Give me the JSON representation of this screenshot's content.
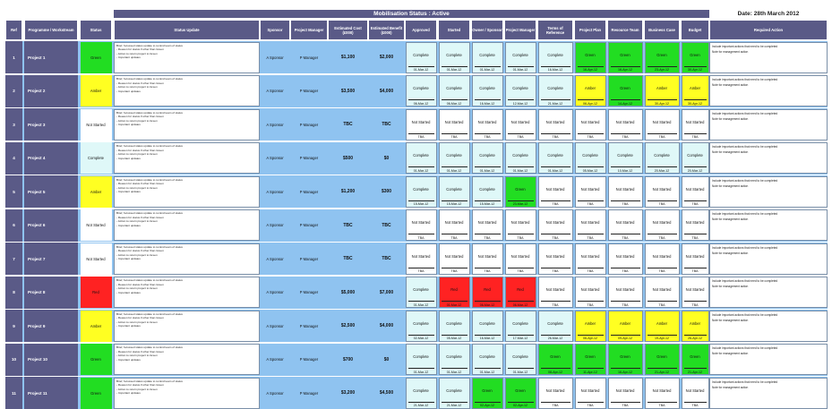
{
  "title": "Mobilisation Status : Active",
  "date": "Date: 28th March 2012",
  "colors": {
    "header": "#5a5a87",
    "row": "#8fc3f0",
    "Green": "#22dd22",
    "Amber": "#ffff22",
    "Red": "#ff2222",
    "Complete": "#dff8f8",
    "Not Started": "#ffffff"
  },
  "headers": {
    "ref": "Ref",
    "programme": "Programme / Workstream",
    "status": "Status",
    "status_update": "Status Update",
    "sponsor": "Sponsor",
    "project_manager": "Project Manager",
    "estimated_cost": "Estimated Cost (£000)",
    "estimated_benefit": "Estimated Benefit (£000)",
    "milestones": [
      "Approved",
      "Started",
      "Owner / Sponsor",
      "Project Manager",
      "Terms of Reference",
      "Project Plan",
      "Resource Team",
      "Business Case",
      "Budget"
    ],
    "required_action": "Required Action"
  },
  "status_update_lines": [
    "Brief, focussed status update to remind team of status",
    "- Reason for status if other than Green",
    "- Action to return project to Green",
    "- Important updates"
  ],
  "required_action_lines": [
    "Include important actions that need to be completed",
    "Note for management action"
  ],
  "rows": [
    {
      "ref": "1",
      "name": "Project 1",
      "status": "Green",
      "sponsor": "A Sponsor",
      "pm": "P Manager",
      "cost": "$1,100",
      "benefit": "$2,000",
      "milestones": [
        [
          "Complete",
          "01-Mar-12"
        ],
        [
          "Complete",
          "01-Mar-12"
        ],
        [
          "Complete",
          "01-Mar-12"
        ],
        [
          "Complete",
          "01-Mar-12"
        ],
        [
          "Complete",
          "16-Mar-12"
        ],
        [
          "Green",
          "16-Apr-12"
        ],
        [
          "Green",
          "16-Apr-12"
        ],
        [
          "Green",
          "23-Apr-12"
        ],
        [
          "Green",
          "30-Apr-12"
        ]
      ]
    },
    {
      "ref": "2",
      "name": "Project 2",
      "status": "Amber",
      "sponsor": "A Sponsor",
      "pm": "P Manager",
      "cost": "$3,500",
      "benefit": "$4,000",
      "milestones": [
        [
          "Complete",
          "06-Mar-12"
        ],
        [
          "Complete",
          "06-Mar-12"
        ],
        [
          "Complete",
          "16-Mar-12"
        ],
        [
          "Complete",
          "12-Mar-12"
        ],
        [
          "Complete",
          "21-Mar-12"
        ],
        [
          "Amber",
          "06-Apr-12"
        ],
        [
          "Green",
          "14-Apr-12"
        ],
        [
          "Amber",
          "30-Apr-12"
        ],
        [
          "Amber",
          "30-Apr-12"
        ]
      ]
    },
    {
      "ref": "3",
      "name": "Project 3",
      "status": "Not Started",
      "sponsor": "A Sponsor",
      "pm": "P Manager",
      "cost": "TBC",
      "benefit": "TBC",
      "milestones": [
        [
          "Not Started",
          "TBA"
        ],
        [
          "Not Started",
          "TBA"
        ],
        [
          "Not Started",
          "TBA"
        ],
        [
          "Not Started",
          "TBA"
        ],
        [
          "Not Started",
          "TBA"
        ],
        [
          "Not Started",
          "TBA"
        ],
        [
          "Not Started",
          "TBA"
        ],
        [
          "Not Started",
          "TBA"
        ],
        [
          "Not Started",
          "TBA"
        ]
      ]
    },
    {
      "ref": "4",
      "name": "Project 4",
      "status": "Complete",
      "sponsor": "A Sponsor",
      "pm": "P Manager",
      "cost": "$500",
      "benefit": "$0",
      "milestones": [
        [
          "Complete",
          "01-Mar-12"
        ],
        [
          "Complete",
          "01-Mar-12"
        ],
        [
          "Complete",
          "01-Mar-12"
        ],
        [
          "Complete",
          "01-Mar-12"
        ],
        [
          "Complete",
          "01-Mar-12"
        ],
        [
          "Complete",
          "05-Mar-12"
        ],
        [
          "Complete",
          "10-Mar-12"
        ],
        [
          "Complete",
          "20-Mar-12"
        ],
        [
          "Complete",
          "20-Mar-12"
        ]
      ]
    },
    {
      "ref": "5",
      "name": "Project 5",
      "status": "Amber",
      "sponsor": "A Sponsor",
      "pm": "P Manager",
      "cost": "$1,200",
      "benefit": "$300",
      "milestones": [
        [
          "Complete",
          "15-Mar-12"
        ],
        [
          "Complete",
          "15-Mar-12"
        ],
        [
          "Complete",
          "15-Mar-12"
        ],
        [
          "Green",
          "23-Mar-12"
        ],
        [
          "Not Started",
          "TBA"
        ],
        [
          "Not Started",
          "TBA"
        ],
        [
          "Not Started",
          "TBA"
        ],
        [
          "Not Started",
          "TBA"
        ],
        [
          "Not Started",
          "TBA"
        ]
      ]
    },
    {
      "ref": "6",
      "name": "Project 6",
      "status": "Not Started",
      "sponsor": "A Sponsor",
      "pm": "P Manager",
      "cost": "TBC",
      "benefit": "TBC",
      "milestones": [
        [
          "Not Started",
          "TBA"
        ],
        [
          "Not Started",
          "TBA"
        ],
        [
          "Not Started",
          "TBA"
        ],
        [
          "Not Started",
          "TBA"
        ],
        [
          "Not Started",
          "TBA"
        ],
        [
          "Not Started",
          "TBA"
        ],
        [
          "Not Started",
          "TBA"
        ],
        [
          "Not Started",
          "TBA"
        ],
        [
          "Not Started",
          "TBA"
        ]
      ]
    },
    {
      "ref": "7",
      "name": "Project 7",
      "status": "Not Started",
      "sponsor": "A Sponsor",
      "pm": "P Manager",
      "cost": "TBC",
      "benefit": "TBC",
      "milestones": [
        [
          "Not Started",
          "TBA"
        ],
        [
          "Not Started",
          "TBA"
        ],
        [
          "Not Started",
          "TBA"
        ],
        [
          "Not Started",
          "TBA"
        ],
        [
          "Not Started",
          "TBA"
        ],
        [
          "Not Started",
          "TBA"
        ],
        [
          "Not Started",
          "TBA"
        ],
        [
          "Not Started",
          "TBA"
        ],
        [
          "Not Started",
          "TBA"
        ]
      ]
    },
    {
      "ref": "8",
      "name": "Project 8",
      "status": "Red",
      "sponsor": "A Sponsor",
      "pm": "P Manager",
      "cost": "$5,000",
      "benefit": "$7,000",
      "milestones": [
        [
          "Complete",
          "01-Mar-12"
        ],
        [
          "Red",
          "01-Mar-12"
        ],
        [
          "Red",
          "06-Mar-12"
        ],
        [
          "Red",
          "06-Mar-12"
        ],
        [
          "Not Started",
          "TBA"
        ],
        [
          "Not Started",
          "TBA"
        ],
        [
          "Not Started",
          "TBA"
        ],
        [
          "Not Started",
          "TBA"
        ],
        [
          "Not Started",
          "TBA"
        ]
      ]
    },
    {
      "ref": "9",
      "name": "Project 9",
      "status": "Amber",
      "sponsor": "A Sponsor",
      "pm": "P Manager",
      "cost": "$2,500",
      "benefit": "$4,000",
      "milestones": [
        [
          "Complete",
          "02-Mar-12"
        ],
        [
          "Complete",
          "05-Mar-12"
        ],
        [
          "Complete",
          "16-Mar-12"
        ],
        [
          "Complete",
          "17-Mar-12"
        ],
        [
          "Complete",
          "26-Mar-12"
        ],
        [
          "Amber",
          "06-Apr-12"
        ],
        [
          "Amber",
          "09-Apr-12"
        ],
        [
          "Amber",
          "19-Apr-12"
        ],
        [
          "Amber",
          "26-Apr-12"
        ]
      ]
    },
    {
      "ref": "10",
      "name": "Project 10",
      "status": "Green",
      "sponsor": "A Sponsor",
      "pm": "P Manager",
      "cost": "$700",
      "benefit": "$0",
      "milestones": [
        [
          "Complete",
          "01-Mar-12"
        ],
        [
          "Complete",
          "01-Mar-12"
        ],
        [
          "Complete",
          "01-Mar-12"
        ],
        [
          "Complete",
          "01-Mar-12"
        ],
        [
          "Green",
          "08-Apr-12"
        ],
        [
          "Green",
          "11-Apr-12"
        ],
        [
          "Green",
          "16-Apr-12"
        ],
        [
          "Green",
          "21-Apr-12"
        ],
        [
          "Green",
          "21-Apr-12"
        ]
      ]
    },
    {
      "ref": "11",
      "name": "Project 11",
      "status": "Green",
      "sponsor": "A Sponsor",
      "pm": "P Manager",
      "cost": "$3,200",
      "benefit": "$4,500",
      "milestones": [
        [
          "Complete",
          "21-Mar-12"
        ],
        [
          "Complete",
          "21-Mar-12"
        ],
        [
          "Green",
          "02-Apr-12"
        ],
        [
          "Green",
          "02-Apr-12"
        ],
        [
          "Not Started",
          "TBA"
        ],
        [
          "Not Started",
          "TBA"
        ],
        [
          "Not Started",
          "TBA"
        ],
        [
          "Not Started",
          "TBA"
        ],
        [
          "Not Started",
          "TBA"
        ]
      ]
    }
  ]
}
